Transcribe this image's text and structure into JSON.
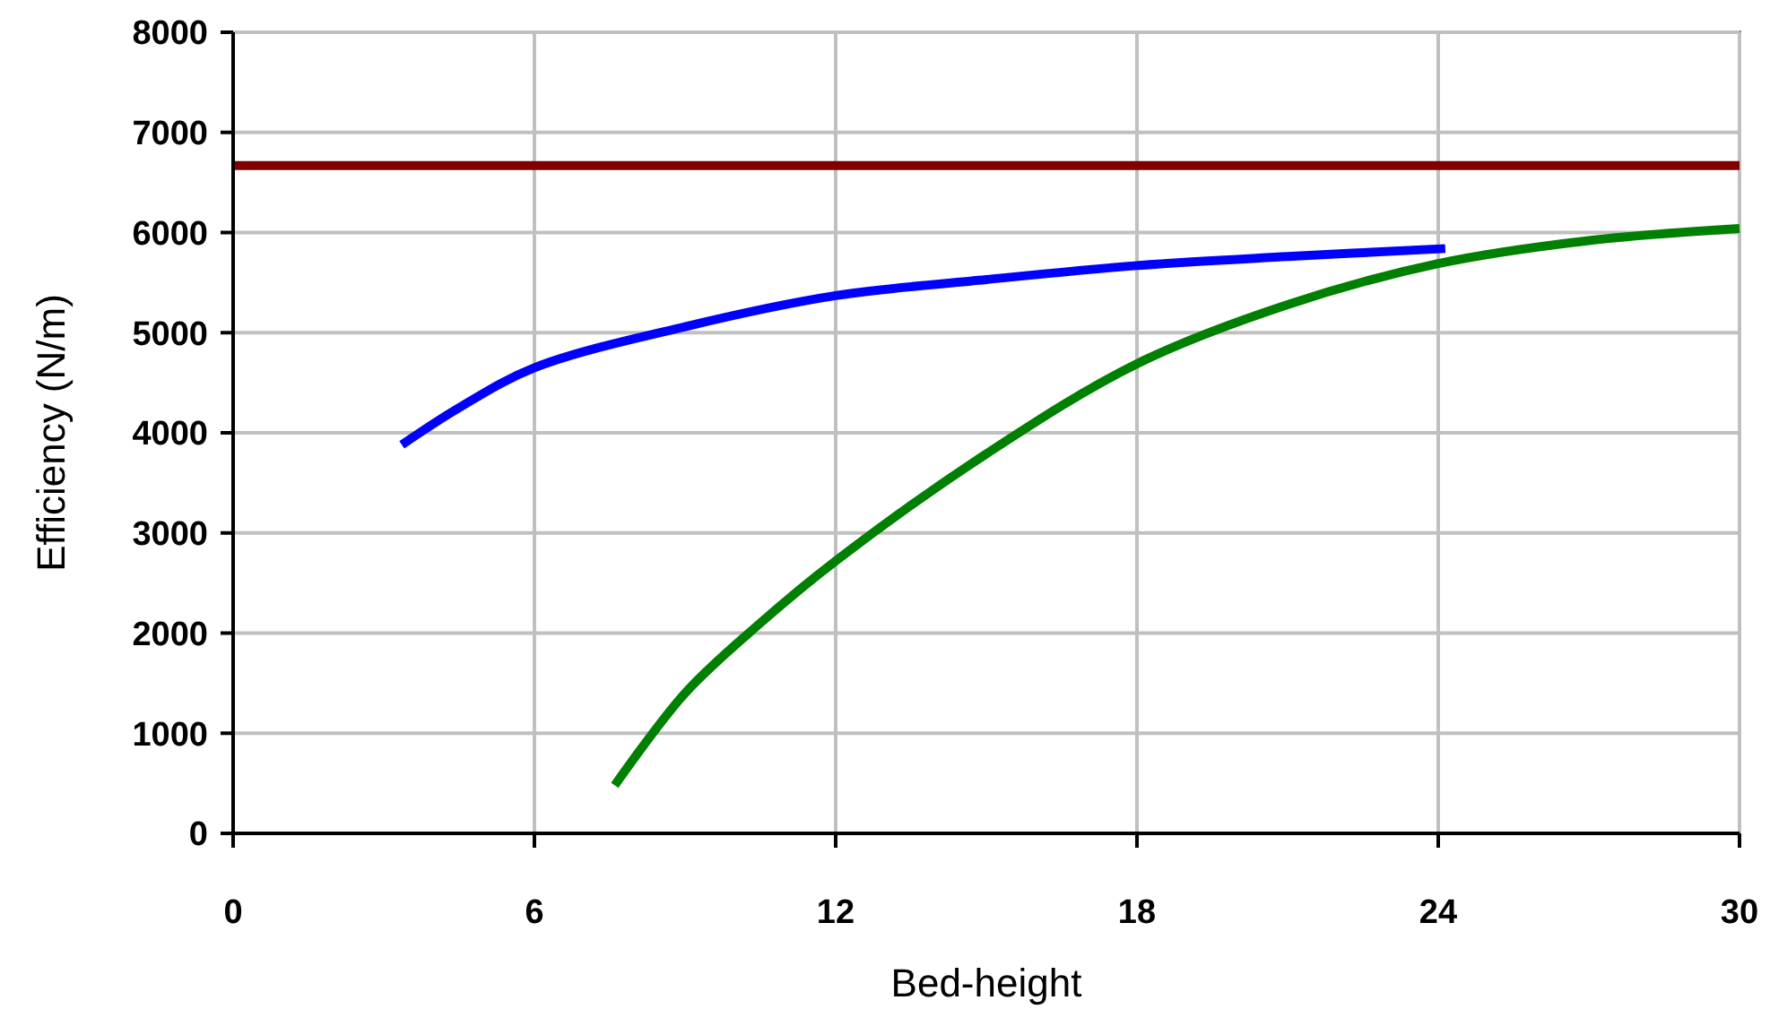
{
  "chart_data": {
    "type": "line",
    "xlabel": "Bed-height",
    "ylabel": "Efficiency (N/m)",
    "xlim": [
      0,
      30
    ],
    "ylim": [
      0,
      8000
    ],
    "xticks": [
      0,
      6,
      12,
      18,
      24,
      30
    ],
    "yticks": [
      0,
      1000,
      2000,
      3000,
      4000,
      5000,
      6000,
      7000,
      8000
    ],
    "grid": true,
    "line_style": "solid",
    "series": [
      {
        "color": "#800000",
        "x": [
          0,
          30
        ],
        "values": [
          6670,
          6670
        ]
      },
      {
        "color": "#0000ff",
        "x": [
          3.36,
          4.5,
          6,
          9,
          12,
          15,
          18,
          21,
          24.14
        ],
        "values": [
          3880,
          4250,
          4650,
          5060,
          5370,
          5530,
          5670,
          5760,
          5840
        ]
      },
      {
        "color": "#008000",
        "x": [
          7.6,
          9,
          10.5,
          12,
          15,
          18,
          21,
          24,
          27,
          30
        ],
        "values": [
          480,
          1400,
          2100,
          2720,
          3790,
          4690,
          5280,
          5690,
          5920,
          6040
        ]
      }
    ]
  }
}
